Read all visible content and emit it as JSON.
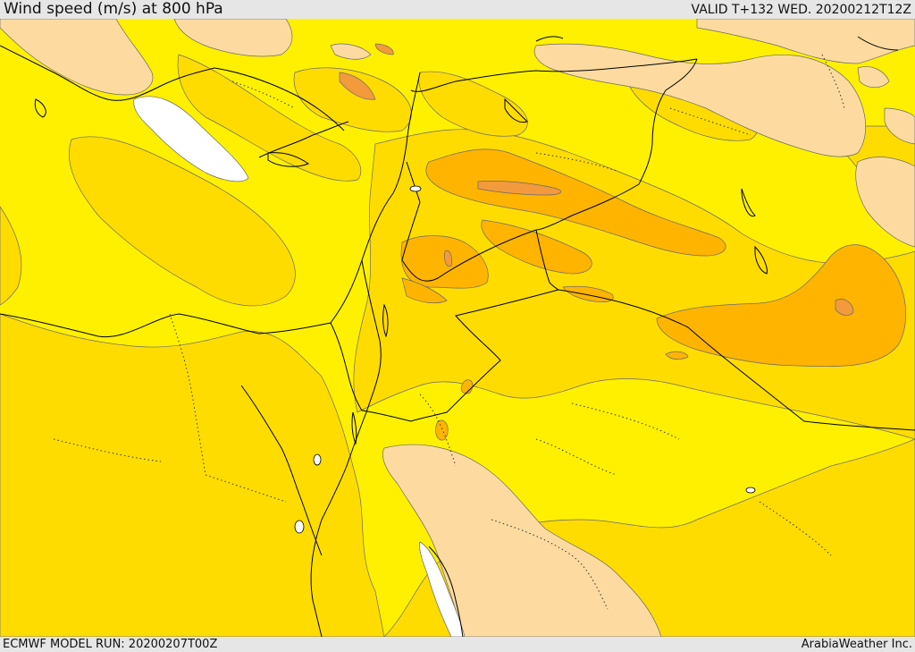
{
  "header": {
    "title": "Wind speed (m/s) at 800 hPa",
    "valid": "VALID T+132 WED. 20200212T12Z"
  },
  "footer": {
    "model_run": "ECMWF MODEL RUN: 20200207T00Z",
    "credit": "ArabiaWeather Inc."
  },
  "colors": {
    "band_lowest": "#ffffff",
    "band_low": "#fff000",
    "band_mid": "#ffdc00",
    "band_high": "#ffb400",
    "band_higher": "#ff9a3c",
    "land_light": "#fddba0",
    "borders": "#000000",
    "contours": "#555555"
  }
}
